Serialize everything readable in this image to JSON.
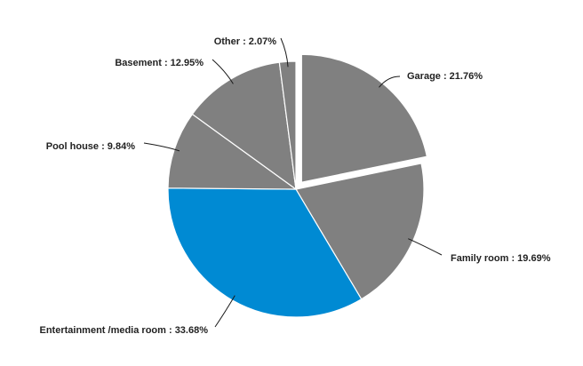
{
  "chart_data": {
    "type": "pie",
    "categories": [
      "Garage",
      "Family room",
      "Entertainment /media room",
      "Pool house",
      "Basement",
      "Other"
    ],
    "values": [
      21.76,
      19.69,
      33.68,
      9.84,
      12.95,
      2.07
    ],
    "unit": "%",
    "labels": [
      "Garage : 21.76%",
      "Family room : 19.69%",
      "Entertainment /media room : 33.68%",
      "Pool house : 9.84%",
      "Basement : 12.95%",
      "Other : 2.07%"
    ],
    "colors": [
      "#808080",
      "#808080",
      "#008ad3",
      "#808080",
      "#808080",
      "#808080"
    ],
    "exploded": [
      "Garage"
    ],
    "start_angle_deg": 0,
    "direction": "clockwise",
    "legend": "none",
    "title": ""
  }
}
